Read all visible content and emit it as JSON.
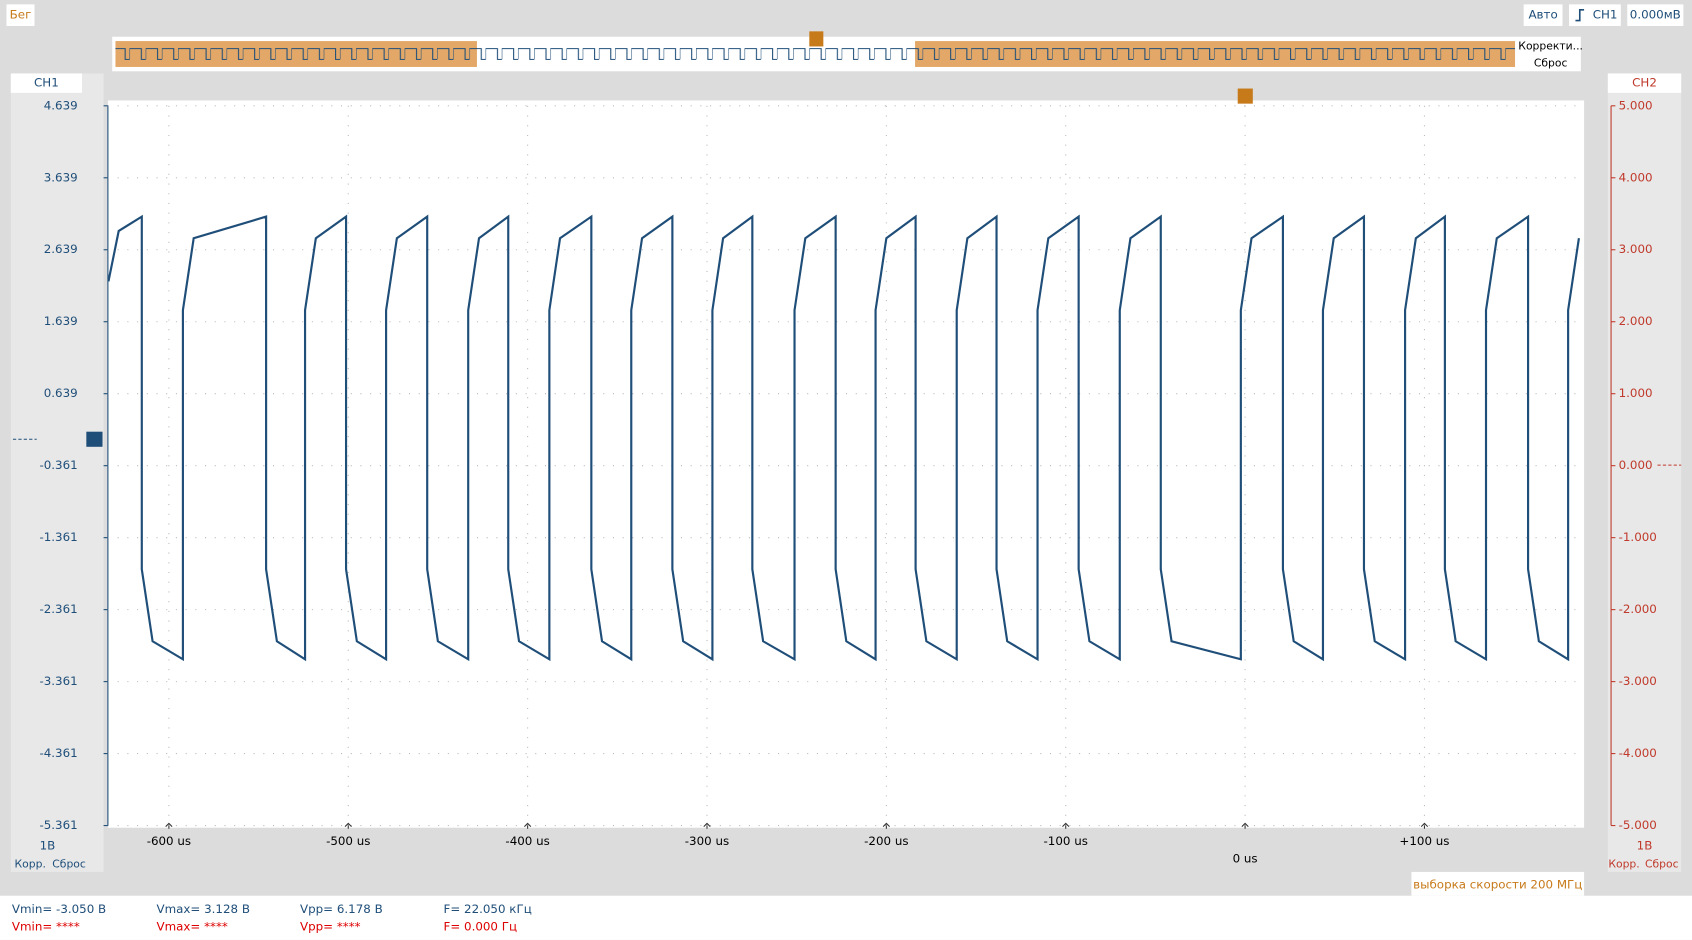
{
  "toolbar": {
    "status": "Бег",
    "mode": "Авто",
    "trigger_channel": "CH1",
    "trigger_level": "0.000мВ",
    "overview_correct": "Корректи...",
    "overview_reset": "Сброс"
  },
  "left_panel": {
    "channel": "CH1",
    "scale": "1В",
    "correct": "Корр.",
    "reset": "Сброс"
  },
  "right_panel": {
    "channel": "CH2",
    "scale": "1В",
    "correct": "Корр.",
    "reset": "Сброс"
  },
  "sample_rate": "выборка скорости 200 МГц",
  "measurements": {
    "ch1": [
      "Vmin= -3.050 В",
      "Vmax= 3.128 В",
      "Vpp= 6.178 В",
      "F= 22.050 кГц"
    ],
    "ch2": [
      "Vmin= ****",
      "Vmax= ****",
      "Vpp= ****",
      "F= 0.000 Гц"
    ]
  },
  "chart_data": {
    "type": "line",
    "color": "#1f4e79",
    "grid": true,
    "xlim": [
      -634,
      189
    ],
    "xticks": [
      {
        "value": -600,
        "label": "-600 us"
      },
      {
        "value": -500,
        "label": "-500 us"
      },
      {
        "value": -400,
        "label": "-400 us"
      },
      {
        "value": -300,
        "label": "-300 us"
      },
      {
        "value": -200,
        "label": "-200 us"
      },
      {
        "value": -100,
        "label": "-100 us"
      },
      {
        "value": 0,
        "label": "0 us"
      },
      {
        "value": 100,
        "label": "+100 us"
      }
    ],
    "ylim": [
      -5.361,
      4.639
    ],
    "yticks": [
      4.639,
      3.639,
      2.639,
      1.639,
      0.639,
      -0.361,
      -1.361,
      -2.361,
      -3.361,
      -4.361,
      -5.361
    ],
    "y2lim": [
      -5,
      5
    ],
    "y2ticks": [
      {
        "value": 5,
        "label": "5.000"
      },
      {
        "value": 4,
        "label": "4.000"
      },
      {
        "value": 3,
        "label": "3.000"
      },
      {
        "value": 2,
        "label": "2.000"
      },
      {
        "value": 1,
        "label": "1.000"
      },
      {
        "value": 0,
        "label": "0.000"
      },
      {
        "value": -1,
        "label": "-1.000"
      },
      {
        "value": -2,
        "label": "-2.000"
      },
      {
        "value": -3,
        "label": "-3.000"
      },
      {
        "value": -4,
        "label": "-4.000"
      },
      {
        "value": -5,
        "label": "-5.000"
      }
    ],
    "x": [
      -633.7,
      -628,
      -615.1,
      -615.1,
      -609.1,
      -592.2,
      -592.2,
      -586.2,
      -545.8,
      -545.8,
      -539.8,
      -524.1,
      -524.1,
      -518.1,
      -501.2,
      -501.2,
      -495.2,
      -478.9,
      -478.9,
      -472.9,
      -456.0,
      -456.0,
      -450.0,
      -433.1,
      -433.1,
      -427.1,
      -410.8,
      -410.8,
      -404.8,
      -387.9,
      -387.9,
      -381.9,
      -364.5,
      -364.5,
      -358.5,
      -342.2,
      -342.2,
      -336.2,
      -319.3,
      -319.3,
      -313.3,
      -297.0,
      -297.0,
      -291.0,
      -274.7,
      -274.7,
      -268.7,
      -251.2,
      -251.2,
      -245.2,
      -228.3,
      -228.3,
      -222.3,
      -206.0,
      -206.0,
      -200.0,
      -183.7,
      -183.7,
      -177.7,
      -160.8,
      -160.8,
      -154.8,
      -138.6,
      -138.6,
      -132.6,
      -115.7,
      -115.7,
      -109.7,
      -92.8,
      -92.8,
      -86.8,
      -69.9,
      -69.9,
      -63.9,
      -47.0,
      -47.0,
      -41.0,
      -2.4,
      -2.4,
      3.6,
      21.1,
      21.1,
      27.1,
      43.4,
      43.4,
      49.4,
      66.3,
      66.3,
      72.3,
      89.2,
      89.2,
      95.2,
      111.4,
      111.4,
      117.4,
      134.3,
      134.3,
      140.3,
      157.8,
      157.8,
      163.8,
      180.1,
      180.1,
      186.1
    ],
    "values": [
      2.2,
      2.9,
      3.1,
      -1.8,
      -2.8,
      -3.05,
      1.8,
      2.8,
      3.1,
      -1.8,
      -2.8,
      -3.05,
      1.8,
      2.8,
      3.1,
      -1.8,
      -2.8,
      -3.05,
      1.8,
      2.8,
      3.1,
      -1.8,
      -2.8,
      -3.05,
      1.8,
      2.8,
      3.1,
      -1.8,
      -2.8,
      -3.05,
      1.8,
      2.8,
      3.1,
      -1.8,
      -2.8,
      -3.05,
      1.8,
      2.8,
      3.1,
      -1.8,
      -2.8,
      -3.05,
      1.8,
      2.8,
      3.1,
      -1.8,
      -2.8,
      -3.05,
      1.8,
      2.8,
      3.1,
      -1.8,
      -2.8,
      -3.05,
      1.8,
      2.8,
      3.1,
      -1.8,
      -2.8,
      -3.05,
      1.8,
      2.8,
      3.1,
      -1.8,
      -2.8,
      -3.05,
      1.8,
      2.8,
      3.1,
      -1.8,
      -2.8,
      -3.05,
      1.8,
      2.8,
      3.1,
      -1.8,
      -2.8,
      -3.05,
      1.8,
      2.8,
      3.1,
      -1.8,
      -2.8,
      -3.05,
      1.8,
      2.8,
      3.1,
      -1.8,
      -2.8,
      -3.05,
      1.8,
      2.8,
      3.1,
      -1.8,
      -2.8,
      -3.05,
      1.8,
      2.8,
      3.1,
      -1.8,
      -2.8,
      -3.05,
      1.8,
      2.8
    ]
  }
}
